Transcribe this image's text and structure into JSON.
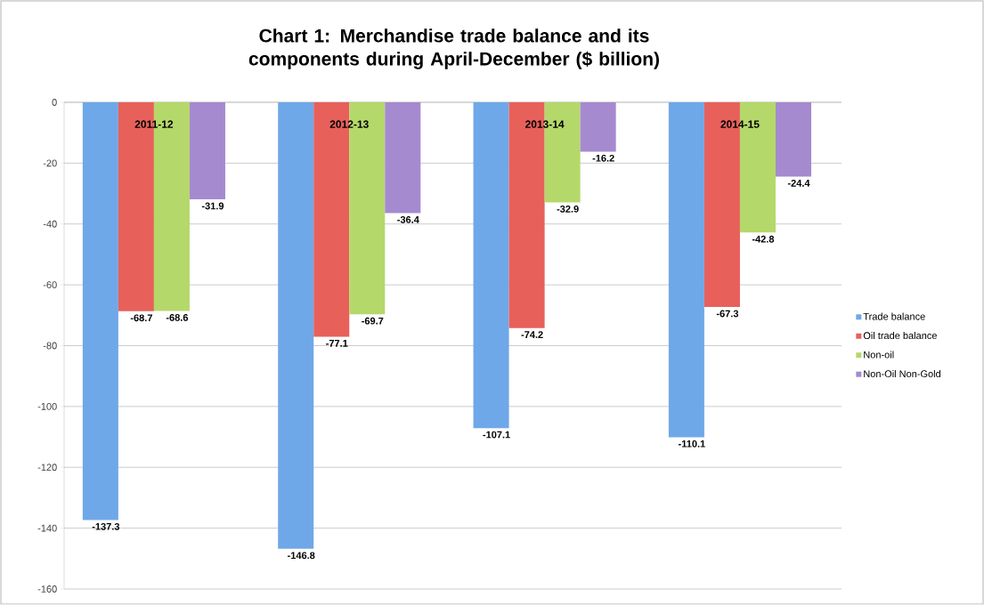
{
  "chart_data": {
    "type": "bar",
    "title": "Chart 1: Merchandise trade balance and its components during April-December ($ billion)",
    "categories": [
      "2011-12",
      "2012-13",
      "2013-14",
      "2014-15"
    ],
    "series": [
      {
        "name": "Trade balance",
        "color": "#6fa8e8",
        "values": [
          -137.3,
          -146.8,
          -107.1,
          -110.1
        ]
      },
      {
        "name": "Oil trade balance",
        "color": "#e8605a",
        "values": [
          -68.7,
          -77.1,
          -74.2,
          -67.3
        ]
      },
      {
        "name": "Non-oil",
        "color": "#b5d86a",
        "values": [
          -68.6,
          -69.7,
          -32.9,
          -42.8
        ]
      },
      {
        "name": "Non-Oil Non-Gold",
        "color": "#a58ad0",
        "values": [
          -31.9,
          -36.4,
          -16.2,
          -24.4
        ]
      }
    ],
    "ylim": [
      -160,
      0
    ],
    "yticks": [
      -160,
      -140,
      -120,
      -100,
      -80,
      -60,
      -40,
      -20,
      0
    ],
    "grid": "y",
    "legend": "right",
    "data_labels": true
  }
}
